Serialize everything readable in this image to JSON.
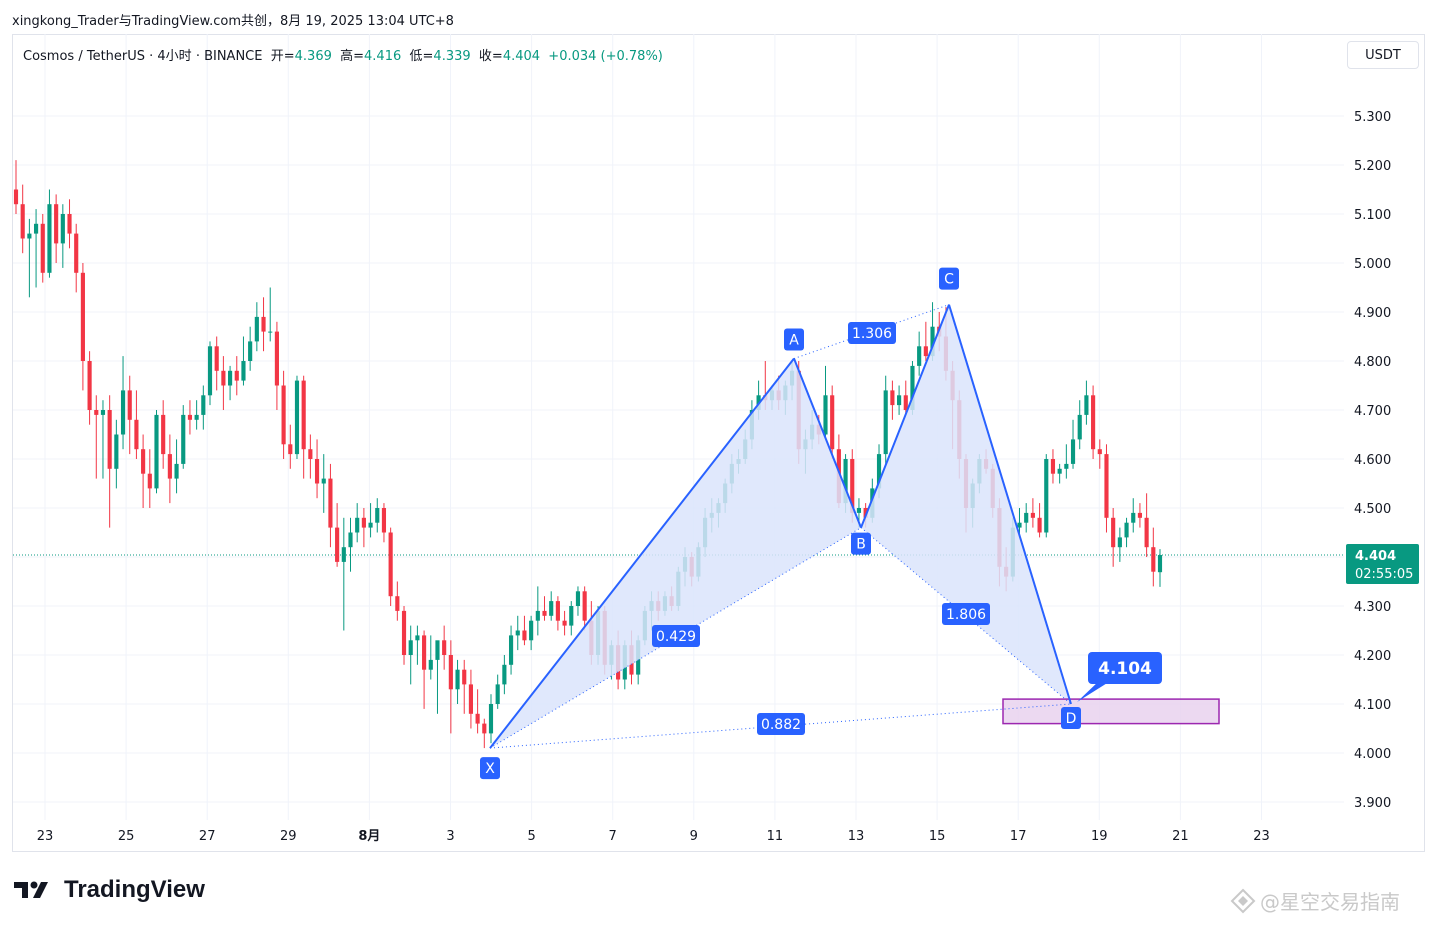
{
  "caption": "xingkong_Trader与TradingView.com共创，8月 19, 2025 13:04 UTC+8",
  "legend": {
    "symbol": "Cosmos / TetherUS · 4小时 · BINANCE",
    "open_label": "开=",
    "open": "4.369",
    "high_label": "高=",
    "high": "4.416",
    "low_label": "低=",
    "low": "4.339",
    "close_label": "收=",
    "close": "4.404",
    "change": "+0.034 (+0.78%)"
  },
  "currency": "USDT",
  "logo_text": "TradingView",
  "watermark": "@星空交易指南",
  "colors": {
    "up": "#089981",
    "down": "#f23645",
    "pattern": "#2962ff",
    "pattern_fill": "#dbe4fb",
    "zone": "#9c27b0",
    "zone_fill": "#e9d2ef"
  },
  "chart_data": {
    "type": "candlestick",
    "y_ticks": [
      "3.900",
      "4.000",
      "4.100",
      "4.200",
      "4.300",
      "4.400",
      "4.500",
      "4.600",
      "4.700",
      "4.800",
      "4.900",
      "5.000",
      "5.100",
      "5.200",
      "5.300"
    ],
    "x_ticks": [
      "23",
      "25",
      "27",
      "29",
      "8月",
      "3",
      "5",
      "7",
      "9",
      "11",
      "13",
      "15",
      "17",
      "19",
      "21",
      "23"
    ],
    "last_price": "4.404",
    "countdown": "02:55:05",
    "candles": [
      [
        5.15,
        5.21,
        5.1,
        5.12
      ],
      [
        5.12,
        5.16,
        5.02,
        5.05
      ],
      [
        5.05,
        5.09,
        4.93,
        5.06
      ],
      [
        5.06,
        5.11,
        4.95,
        5.08
      ],
      [
        5.08,
        5.1,
        4.96,
        4.98
      ],
      [
        4.98,
        5.15,
        4.97,
        5.12
      ],
      [
        5.12,
        5.14,
        5.0,
        5.04
      ],
      [
        5.04,
        5.12,
        4.99,
        5.1
      ],
      [
        5.1,
        5.13,
        5.03,
        5.06
      ],
      [
        5.06,
        5.08,
        4.94,
        4.98
      ],
      [
        4.98,
        5.0,
        4.74,
        4.8
      ],
      [
        4.8,
        4.82,
        4.67,
        4.7
      ],
      [
        4.7,
        4.73,
        4.56,
        4.69
      ],
      [
        4.69,
        4.72,
        4.56,
        4.7
      ],
      [
        4.7,
        4.73,
        4.46,
        4.58
      ],
      [
        4.58,
        4.68,
        4.54,
        4.65
      ],
      [
        4.65,
        4.81,
        4.62,
        4.74
      ],
      [
        4.74,
        4.77,
        4.61,
        4.68
      ],
      [
        4.68,
        4.74,
        4.6,
        4.62
      ],
      [
        4.62,
        4.65,
        4.5,
        4.57
      ],
      [
        4.57,
        4.62,
        4.5,
        4.54
      ],
      [
        4.54,
        4.7,
        4.53,
        4.69
      ],
      [
        4.69,
        4.72,
        4.58,
        4.61
      ],
      [
        4.61,
        4.65,
        4.51,
        4.56
      ],
      [
        4.56,
        4.64,
        4.53,
        4.59
      ],
      [
        4.59,
        4.71,
        4.58,
        4.69
      ],
      [
        4.69,
        4.72,
        4.65,
        4.68
      ],
      [
        4.68,
        4.72,
        4.66,
        4.69
      ],
      [
        4.69,
        4.75,
        4.66,
        4.73
      ],
      [
        4.73,
        4.84,
        4.71,
        4.83
      ],
      [
        4.83,
        4.85,
        4.74,
        4.78
      ],
      [
        4.78,
        4.81,
        4.7,
        4.75
      ],
      [
        4.75,
        4.79,
        4.72,
        4.78
      ],
      [
        4.78,
        4.81,
        4.73,
        4.76
      ],
      [
        4.76,
        4.85,
        4.75,
        4.8
      ],
      [
        4.8,
        4.87,
        4.78,
        4.84
      ],
      [
        4.84,
        4.92,
        4.82,
        4.89
      ],
      [
        4.89,
        4.93,
        4.82,
        4.86
      ],
      [
        4.86,
        4.95,
        4.84,
        4.86
      ],
      [
        4.86,
        4.88,
        4.7,
        4.75
      ],
      [
        4.75,
        4.78,
        4.6,
        4.63
      ],
      [
        4.63,
        4.67,
        4.58,
        4.61
      ],
      [
        4.61,
        4.77,
        4.6,
        4.76
      ],
      [
        4.76,
        4.77,
        4.56,
        4.62
      ],
      [
        4.62,
        4.65,
        4.56,
        4.6
      ],
      [
        4.6,
        4.64,
        4.52,
        4.55
      ],
      [
        4.55,
        4.61,
        4.49,
        4.56
      ],
      [
        4.56,
        4.59,
        4.42,
        4.46
      ],
      [
        4.46,
        4.51,
        4.38,
        4.39
      ],
      [
        4.39,
        4.48,
        4.25,
        4.42
      ],
      [
        4.42,
        4.48,
        4.37,
        4.45
      ],
      [
        4.45,
        4.51,
        4.43,
        4.48
      ],
      [
        4.48,
        4.5,
        4.42,
        4.46
      ],
      [
        4.46,
        4.51,
        4.44,
        4.47
      ],
      [
        4.47,
        4.52,
        4.45,
        4.5
      ],
      [
        4.5,
        4.51,
        4.43,
        4.45
      ],
      [
        4.45,
        4.46,
        4.3,
        4.32
      ],
      [
        4.32,
        4.35,
        4.27,
        4.29
      ],
      [
        4.29,
        4.3,
        4.18,
        4.2
      ],
      [
        4.2,
        4.26,
        4.14,
        4.23
      ],
      [
        4.23,
        4.26,
        4.18,
        4.24
      ],
      [
        4.24,
        4.25,
        4.09,
        4.17
      ],
      [
        4.17,
        4.24,
        4.15,
        4.19
      ],
      [
        4.19,
        4.22,
        4.08,
        4.23
      ],
      [
        4.23,
        4.26,
        4.17,
        4.2
      ],
      [
        4.2,
        4.23,
        4.04,
        4.13
      ],
      [
        4.13,
        4.19,
        4.1,
        4.17
      ],
      [
        4.17,
        4.19,
        4.08,
        4.14
      ],
      [
        4.14,
        4.17,
        4.05,
        4.08
      ],
      [
        4.08,
        4.13,
        4.04,
        4.06
      ],
      [
        4.06,
        4.07,
        4.01,
        4.04
      ],
      [
        4.04,
        4.12,
        4.02,
        4.1
      ],
      [
        4.1,
        4.16,
        4.09,
        4.14
      ],
      [
        4.14,
        4.2,
        4.12,
        4.18
      ],
      [
        4.18,
        4.26,
        4.16,
        4.24
      ],
      [
        4.24,
        4.28,
        4.21,
        4.25
      ],
      [
        4.25,
        4.28,
        4.22,
        4.23
      ],
      [
        4.23,
        4.28,
        4.21,
        4.27
      ],
      [
        4.27,
        4.34,
        4.24,
        4.29
      ],
      [
        4.29,
        4.32,
        4.27,
        4.28
      ],
      [
        4.28,
        4.33,
        4.27,
        4.31
      ],
      [
        4.31,
        4.32,
        4.25,
        4.27
      ],
      [
        4.27,
        4.29,
        4.24,
        4.26
      ],
      [
        4.26,
        4.31,
        4.24,
        4.3
      ],
      [
        4.3,
        4.34,
        4.28,
        4.33
      ],
      [
        4.33,
        4.34,
        4.25,
        4.27
      ],
      [
        4.27,
        4.31,
        4.18,
        4.2
      ],
      [
        4.2,
        4.3,
        4.18,
        4.29
      ],
      [
        4.29,
        4.3,
        4.16,
        4.18
      ],
      [
        4.18,
        4.23,
        4.15,
        4.22
      ],
      [
        4.22,
        4.25,
        4.13,
        4.15
      ],
      [
        4.15,
        4.23,
        4.13,
        4.22
      ],
      [
        4.22,
        4.25,
        4.14,
        4.16
      ],
      [
        4.16,
        4.24,
        4.14,
        4.23
      ],
      [
        4.23,
        4.3,
        4.22,
        4.29
      ],
      [
        4.29,
        4.33,
        4.25,
        4.31
      ],
      [
        4.31,
        4.33,
        4.27,
        4.29
      ],
      [
        4.29,
        4.33,
        4.28,
        4.32
      ],
      [
        4.32,
        4.34,
        4.29,
        4.3
      ],
      [
        4.3,
        4.38,
        4.29,
        4.37
      ],
      [
        4.37,
        4.42,
        4.34,
        4.4
      ],
      [
        4.4,
        4.41,
        4.34,
        4.36
      ],
      [
        4.36,
        4.43,
        4.35,
        4.42
      ],
      [
        4.42,
        4.5,
        4.4,
        4.48
      ],
      [
        4.48,
        4.52,
        4.45,
        4.49
      ],
      [
        4.49,
        4.52,
        4.46,
        4.51
      ],
      [
        4.51,
        4.56,
        4.49,
        4.55
      ],
      [
        4.55,
        4.61,
        4.53,
        4.59
      ],
      [
        4.59,
        4.62,
        4.57,
        4.6
      ],
      [
        4.6,
        4.66,
        4.59,
        4.64
      ],
      [
        4.64,
        4.72,
        4.62,
        4.7
      ],
      [
        4.7,
        4.76,
        4.68,
        4.73
      ],
      [
        4.73,
        4.8,
        4.7,
        4.72
      ],
      [
        4.72,
        4.75,
        4.7,
        4.74
      ],
      [
        4.74,
        4.77,
        4.7,
        4.72
      ],
      [
        4.72,
        4.76,
        4.69,
        4.75
      ],
      [
        4.75,
        4.8,
        4.72,
        4.78
      ],
      [
        4.78,
        4.8,
        4.59,
        4.62
      ],
      [
        4.62,
        4.66,
        4.57,
        4.64
      ],
      [
        4.64,
        4.7,
        4.62,
        4.67
      ],
      [
        4.67,
        4.69,
        4.63,
        4.65
      ],
      [
        4.65,
        4.79,
        4.64,
        4.73
      ],
      [
        4.73,
        4.75,
        4.6,
        4.62
      ],
      [
        4.62,
        4.65,
        4.5,
        4.51
      ],
      [
        4.51,
        4.61,
        4.49,
        4.6
      ],
      [
        4.6,
        4.62,
        4.47,
        4.49
      ],
      [
        4.49,
        4.52,
        4.46,
        4.5
      ],
      [
        4.5,
        4.51,
        4.46,
        4.48
      ],
      [
        4.48,
        4.56,
        4.47,
        4.54
      ],
      [
        4.54,
        4.63,
        4.52,
        4.61
      ],
      [
        4.61,
        4.77,
        4.59,
        4.74
      ],
      [
        4.74,
        4.76,
        4.68,
        4.71
      ],
      [
        4.71,
        4.75,
        4.69,
        4.73
      ],
      [
        4.73,
        4.76,
        4.69,
        4.7
      ],
      [
        4.7,
        4.8,
        4.69,
        4.79
      ],
      [
        4.79,
        4.86,
        4.77,
        4.83
      ],
      [
        4.83,
        4.88,
        4.8,
        4.81
      ],
      [
        4.81,
        4.92,
        4.8,
        4.87
      ],
      [
        4.87,
        4.9,
        4.82,
        4.85
      ],
      [
        4.85,
        4.91,
        4.76,
        4.78
      ],
      [
        4.78,
        4.8,
        4.62,
        4.72
      ],
      [
        4.72,
        4.74,
        4.56,
        4.6
      ],
      [
        4.6,
        4.61,
        4.45,
        4.5
      ],
      [
        4.5,
        4.56,
        4.46,
        4.55
      ],
      [
        4.55,
        4.61,
        4.53,
        4.6
      ],
      [
        4.6,
        4.62,
        4.57,
        4.58
      ],
      [
        4.58,
        4.59,
        4.48,
        4.5
      ],
      [
        4.5,
        4.52,
        4.34,
        4.38
      ],
      [
        4.38,
        4.42,
        4.33,
        4.36
      ],
      [
        4.36,
        4.48,
        4.35,
        4.46
      ],
      [
        4.46,
        4.5,
        4.44,
        4.47
      ],
      [
        4.47,
        4.51,
        4.45,
        4.49
      ],
      [
        4.49,
        4.52,
        4.46,
        4.48
      ],
      [
        4.48,
        4.51,
        4.44,
        4.45
      ],
      [
        4.45,
        4.61,
        4.44,
        4.6
      ],
      [
        4.6,
        4.62,
        4.55,
        4.57
      ],
      [
        4.57,
        4.59,
        4.55,
        4.58
      ],
      [
        4.58,
        4.63,
        4.56,
        4.59
      ],
      [
        4.59,
        4.68,
        4.58,
        4.64
      ],
      [
        4.64,
        4.72,
        4.62,
        4.69
      ],
      [
        4.69,
        4.76,
        4.67,
        4.73
      ],
      [
        4.73,
        4.75,
        4.6,
        4.62
      ],
      [
        4.62,
        4.64,
        4.58,
        4.61
      ],
      [
        4.61,
        4.63,
        4.45,
        4.48
      ],
      [
        4.48,
        4.5,
        4.38,
        4.42
      ],
      [
        4.42,
        4.46,
        4.39,
        4.44
      ],
      [
        4.44,
        4.48,
        4.42,
        4.47
      ],
      [
        4.47,
        4.52,
        4.45,
        4.49
      ],
      [
        4.49,
        4.51,
        4.46,
        4.48
      ],
      [
        4.48,
        4.53,
        4.4,
        4.42
      ],
      [
        4.42,
        4.46,
        4.34,
        4.37
      ],
      [
        4.369,
        4.416,
        4.339,
        4.404
      ]
    ],
    "pattern": {
      "points": [
        {
          "label": "X",
          "x": "8月 3",
          "y": 4.01
        },
        {
          "label": "A",
          "x": "8月 10",
          "y": 4.805
        },
        {
          "label": "B",
          "x": "8月 12",
          "y": 4.46
        },
        {
          "label": "C",
          "x": "8月 14",
          "y": 4.915
        },
        {
          "label": "D",
          "x": "8月 17",
          "y": 4.1
        }
      ],
      "ratios": {
        "xb": "0.429",
        "ac": "1.306",
        "bd": "1.806",
        "xd": "0.882"
      }
    },
    "target_label": "4.104",
    "target_zone": [
      4.06,
      4.11
    ]
  }
}
